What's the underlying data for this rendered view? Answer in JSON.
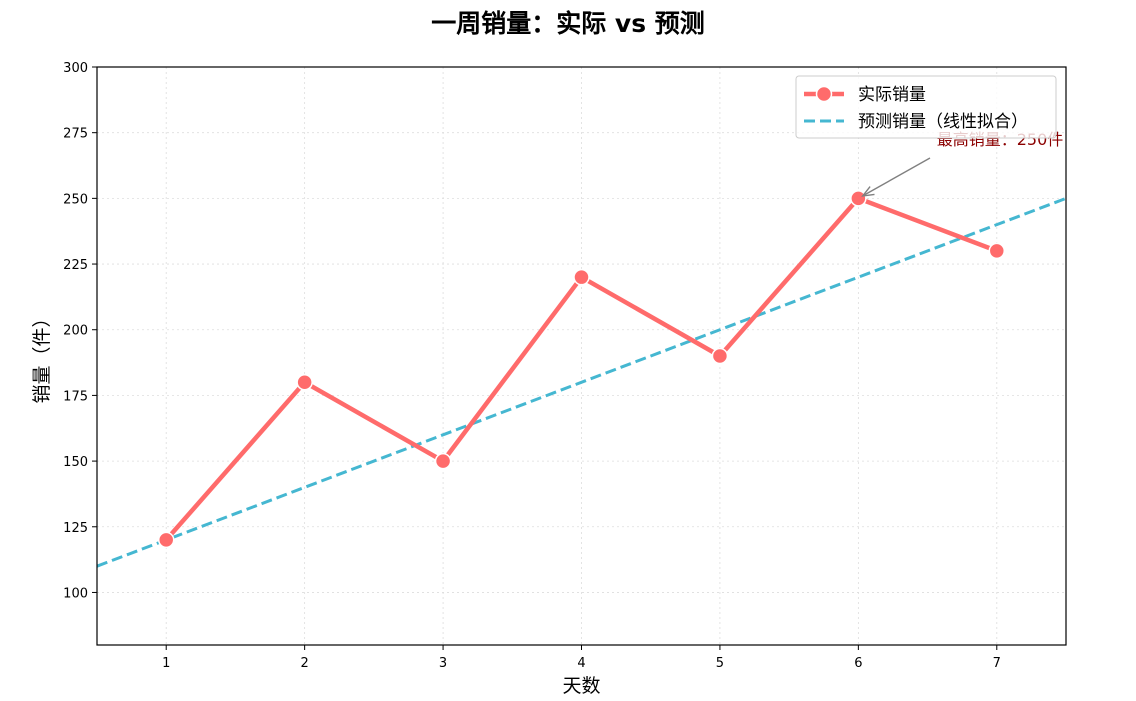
{
  "chart_data": {
    "type": "line",
    "title": "一周销量：实际 vs 预测",
    "xlabel": "天数",
    "ylabel": "销量（件）",
    "x": [
      1,
      2,
      3,
      4,
      5,
      6,
      7
    ],
    "xlim": [
      0.5,
      7.5
    ],
    "ylim": [
      80,
      300
    ],
    "x_ticks": [
      1,
      2,
      3,
      4,
      5,
      6,
      7
    ],
    "y_ticks": [
      100,
      125,
      150,
      175,
      200,
      225,
      250,
      275,
      300
    ],
    "grid": true,
    "legend_position": "top-right",
    "series": [
      {
        "name": "实际销量",
        "type": "line",
        "style": "solid",
        "markers": true,
        "color": "#ff6b6b",
        "values": [
          120,
          180,
          150,
          220,
          190,
          250,
          230
        ]
      },
      {
        "name": "预测销量（线性拟合）",
        "type": "line",
        "style": "dashed",
        "color": "#45b7d1",
        "fit": {
          "slope": 20,
          "intercept": 100
        }
      }
    ],
    "annotation": {
      "text": "最高销量：250件",
      "x": 6,
      "y": 250,
      "color": "#8b0000",
      "arrow_color": "#808080"
    }
  }
}
